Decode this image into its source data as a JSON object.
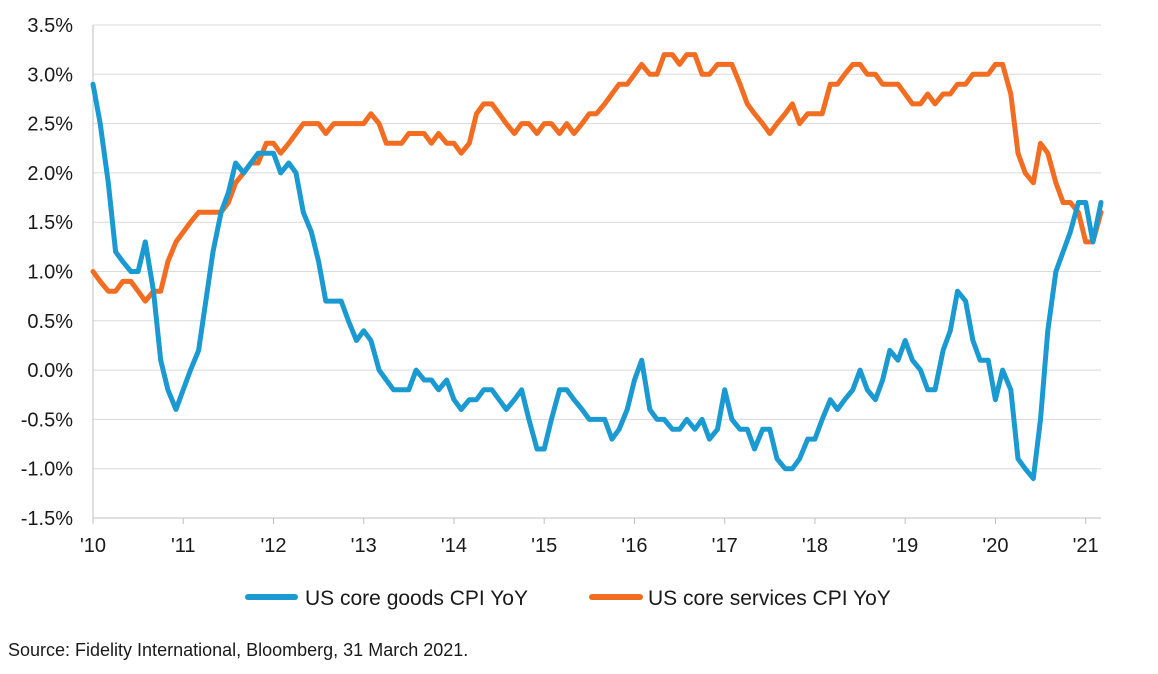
{
  "source": "Source: Fidelity International, Bloomberg, 31 March 2021.",
  "chart_data": {
    "type": "line",
    "ylim": [
      -1.5,
      3.5
    ],
    "yticks": [
      -1.5,
      -1.0,
      -0.5,
      0.0,
      0.5,
      1.0,
      1.5,
      2.0,
      2.5,
      3.0,
      3.5
    ],
    "ytick_labels": [
      "-1.5%",
      "-1.0%",
      "-0.5%",
      "0.0%",
      "0.5%",
      "1.0%",
      "1.5%",
      "2.0%",
      "2.5%",
      "3.0%",
      "3.5%"
    ],
    "xlim": [
      2010.0,
      2021.17
    ],
    "xticks": [
      2010,
      2011,
      2012,
      2013,
      2014,
      2015,
      2016,
      2017,
      2018,
      2019,
      2020,
      2021
    ],
    "xtick_labels": [
      "'10",
      "'11",
      "'12",
      "'13",
      "'14",
      "'15",
      "'16",
      "'17",
      "'18",
      "'19",
      "'20",
      "'21"
    ],
    "grid": "horizontal",
    "legend_position": "bottom",
    "series": [
      {
        "name": "US core goods CPI YoY",
        "color": "#1a9ad0",
        "points": [
          [
            2010.0,
            2.9
          ],
          [
            2010.08,
            2.5
          ],
          [
            2010.17,
            1.9
          ],
          [
            2010.25,
            1.2
          ],
          [
            2010.33,
            1.1
          ],
          [
            2010.42,
            1.0
          ],
          [
            2010.5,
            1.0
          ],
          [
            2010.58,
            1.3
          ],
          [
            2010.67,
            0.8
          ],
          [
            2010.75,
            0.1
          ],
          [
            2010.83,
            -0.2
          ],
          [
            2010.92,
            -0.4
          ],
          [
            2011.0,
            -0.2
          ],
          [
            2011.08,
            0.0
          ],
          [
            2011.17,
            0.2
          ],
          [
            2011.25,
            0.7
          ],
          [
            2011.33,
            1.2
          ],
          [
            2011.42,
            1.6
          ],
          [
            2011.5,
            1.8
          ],
          [
            2011.58,
            2.1
          ],
          [
            2011.67,
            2.0
          ],
          [
            2011.75,
            2.1
          ],
          [
            2011.83,
            2.2
          ],
          [
            2011.92,
            2.2
          ],
          [
            2012.0,
            2.2
          ],
          [
            2012.08,
            2.0
          ],
          [
            2012.17,
            2.1
          ],
          [
            2012.25,
            2.0
          ],
          [
            2012.33,
            1.6
          ],
          [
            2012.42,
            1.4
          ],
          [
            2012.5,
            1.1
          ],
          [
            2012.58,
            0.7
          ],
          [
            2012.67,
            0.7
          ],
          [
            2012.75,
            0.7
          ],
          [
            2012.83,
            0.5
          ],
          [
            2012.92,
            0.3
          ],
          [
            2013.0,
            0.4
          ],
          [
            2013.08,
            0.3
          ],
          [
            2013.17,
            0.0
          ],
          [
            2013.25,
            -0.1
          ],
          [
            2013.33,
            -0.2
          ],
          [
            2013.42,
            -0.2
          ],
          [
            2013.5,
            -0.2
          ],
          [
            2013.58,
            0.0
          ],
          [
            2013.67,
            -0.1
          ],
          [
            2013.75,
            -0.1
          ],
          [
            2013.83,
            -0.2
          ],
          [
            2013.92,
            -0.1
          ],
          [
            2014.0,
            -0.3
          ],
          [
            2014.08,
            -0.4
          ],
          [
            2014.17,
            -0.3
          ],
          [
            2014.25,
            -0.3
          ],
          [
            2014.33,
            -0.2
          ],
          [
            2014.42,
            -0.2
          ],
          [
            2014.5,
            -0.3
          ],
          [
            2014.58,
            -0.4
          ],
          [
            2014.67,
            -0.3
          ],
          [
            2014.75,
            -0.2
          ],
          [
            2014.83,
            -0.5
          ],
          [
            2014.92,
            -0.8
          ],
          [
            2015.0,
            -0.8
          ],
          [
            2015.08,
            -0.5
          ],
          [
            2015.17,
            -0.2
          ],
          [
            2015.25,
            -0.2
          ],
          [
            2015.33,
            -0.3
          ],
          [
            2015.42,
            -0.4
          ],
          [
            2015.5,
            -0.5
          ],
          [
            2015.58,
            -0.5
          ],
          [
            2015.67,
            -0.5
          ],
          [
            2015.75,
            -0.7
          ],
          [
            2015.83,
            -0.6
          ],
          [
            2015.92,
            -0.4
          ],
          [
            2016.0,
            -0.1
          ],
          [
            2016.08,
            0.1
          ],
          [
            2016.17,
            -0.4
          ],
          [
            2016.25,
            -0.5
          ],
          [
            2016.33,
            -0.5
          ],
          [
            2016.42,
            -0.6
          ],
          [
            2016.5,
            -0.6
          ],
          [
            2016.58,
            -0.5
          ],
          [
            2016.67,
            -0.6
          ],
          [
            2016.75,
            -0.5
          ],
          [
            2016.83,
            -0.7
          ],
          [
            2016.92,
            -0.6
          ],
          [
            2017.0,
            -0.2
          ],
          [
            2017.08,
            -0.5
          ],
          [
            2017.17,
            -0.6
          ],
          [
            2017.25,
            -0.6
          ],
          [
            2017.33,
            -0.8
          ],
          [
            2017.42,
            -0.6
          ],
          [
            2017.5,
            -0.6
          ],
          [
            2017.58,
            -0.9
          ],
          [
            2017.67,
            -1.0
          ],
          [
            2017.75,
            -1.0
          ],
          [
            2017.83,
            -0.9
          ],
          [
            2017.92,
            -0.7
          ],
          [
            2018.0,
            -0.7
          ],
          [
            2018.08,
            -0.5
          ],
          [
            2018.17,
            -0.3
          ],
          [
            2018.25,
            -0.4
          ],
          [
            2018.33,
            -0.3
          ],
          [
            2018.42,
            -0.2
          ],
          [
            2018.5,
            0.0
          ],
          [
            2018.58,
            -0.2
          ],
          [
            2018.67,
            -0.3
          ],
          [
            2018.75,
            -0.1
          ],
          [
            2018.83,
            0.2
          ],
          [
            2018.92,
            0.1
          ],
          [
            2019.0,
            0.3
          ],
          [
            2019.08,
            0.1
          ],
          [
            2019.17,
            0.0
          ],
          [
            2019.25,
            -0.2
          ],
          [
            2019.33,
            -0.2
          ],
          [
            2019.42,
            0.2
          ],
          [
            2019.5,
            0.4
          ],
          [
            2019.58,
            0.8
          ],
          [
            2019.67,
            0.7
          ],
          [
            2019.75,
            0.3
          ],
          [
            2019.83,
            0.1
          ],
          [
            2019.92,
            0.1
          ],
          [
            2020.0,
            -0.3
          ],
          [
            2020.08,
            0.0
          ],
          [
            2020.17,
            -0.2
          ],
          [
            2020.25,
            -0.9
          ],
          [
            2020.33,
            -1.0
          ],
          [
            2020.42,
            -1.1
          ],
          [
            2020.5,
            -0.5
          ],
          [
            2020.58,
            0.4
          ],
          [
            2020.67,
            1.0
          ],
          [
            2020.75,
            1.2
          ],
          [
            2020.83,
            1.4
          ],
          [
            2020.92,
            1.7
          ],
          [
            2021.0,
            1.7
          ],
          [
            2021.08,
            1.3
          ],
          [
            2021.17,
            1.7
          ]
        ]
      },
      {
        "name": "US core services CPI YoY",
        "color": "#f26d21",
        "points": [
          [
            2010.0,
            1.0
          ],
          [
            2010.08,
            0.9
          ],
          [
            2010.17,
            0.8
          ],
          [
            2010.25,
            0.8
          ],
          [
            2010.33,
            0.9
          ],
          [
            2010.42,
            0.9
          ],
          [
            2010.5,
            0.8
          ],
          [
            2010.58,
            0.7
          ],
          [
            2010.67,
            0.8
          ],
          [
            2010.75,
            0.8
          ],
          [
            2010.83,
            1.1
          ],
          [
            2010.92,
            1.3
          ],
          [
            2011.0,
            1.4
          ],
          [
            2011.08,
            1.5
          ],
          [
            2011.17,
            1.6
          ],
          [
            2011.25,
            1.6
          ],
          [
            2011.33,
            1.6
          ],
          [
            2011.42,
            1.6
          ],
          [
            2011.5,
            1.7
          ],
          [
            2011.58,
            1.9
          ],
          [
            2011.67,
            2.0
          ],
          [
            2011.75,
            2.1
          ],
          [
            2011.83,
            2.1
          ],
          [
            2011.92,
            2.3
          ],
          [
            2012.0,
            2.3
          ],
          [
            2012.08,
            2.2
          ],
          [
            2012.17,
            2.3
          ],
          [
            2012.25,
            2.4
          ],
          [
            2012.33,
            2.5
          ],
          [
            2012.42,
            2.5
          ],
          [
            2012.5,
            2.5
          ],
          [
            2012.58,
            2.4
          ],
          [
            2012.67,
            2.5
          ],
          [
            2012.75,
            2.5
          ],
          [
            2012.83,
            2.5
          ],
          [
            2012.92,
            2.5
          ],
          [
            2013.0,
            2.5
          ],
          [
            2013.08,
            2.6
          ],
          [
            2013.17,
            2.5
          ],
          [
            2013.25,
            2.3
          ],
          [
            2013.33,
            2.3
          ],
          [
            2013.42,
            2.3
          ],
          [
            2013.5,
            2.4
          ],
          [
            2013.58,
            2.4
          ],
          [
            2013.67,
            2.4
          ],
          [
            2013.75,
            2.3
          ],
          [
            2013.83,
            2.4
          ],
          [
            2013.92,
            2.3
          ],
          [
            2014.0,
            2.3
          ],
          [
            2014.08,
            2.2
          ],
          [
            2014.17,
            2.3
          ],
          [
            2014.25,
            2.6
          ],
          [
            2014.33,
            2.7
          ],
          [
            2014.42,
            2.7
          ],
          [
            2014.5,
            2.6
          ],
          [
            2014.58,
            2.5
          ],
          [
            2014.67,
            2.4
          ],
          [
            2014.75,
            2.5
          ],
          [
            2014.83,
            2.5
          ],
          [
            2014.92,
            2.4
          ],
          [
            2015.0,
            2.5
          ],
          [
            2015.08,
            2.5
          ],
          [
            2015.17,
            2.4
          ],
          [
            2015.25,
            2.5
          ],
          [
            2015.33,
            2.4
          ],
          [
            2015.42,
            2.5
          ],
          [
            2015.5,
            2.6
          ],
          [
            2015.58,
            2.6
          ],
          [
            2015.67,
            2.7
          ],
          [
            2015.75,
            2.8
          ],
          [
            2015.83,
            2.9
          ],
          [
            2015.92,
            2.9
          ],
          [
            2016.0,
            3.0
          ],
          [
            2016.08,
            3.1
          ],
          [
            2016.17,
            3.0
          ],
          [
            2016.25,
            3.0
          ],
          [
            2016.33,
            3.2
          ],
          [
            2016.42,
            3.2
          ],
          [
            2016.5,
            3.1
          ],
          [
            2016.58,
            3.2
          ],
          [
            2016.67,
            3.2
          ],
          [
            2016.75,
            3.0
          ],
          [
            2016.83,
            3.0
          ],
          [
            2016.92,
            3.1
          ],
          [
            2017.0,
            3.1
          ],
          [
            2017.08,
            3.1
          ],
          [
            2017.17,
            2.9
          ],
          [
            2017.25,
            2.7
          ],
          [
            2017.33,
            2.6
          ],
          [
            2017.42,
            2.5
          ],
          [
            2017.5,
            2.4
          ],
          [
            2017.58,
            2.5
          ],
          [
            2017.67,
            2.6
          ],
          [
            2017.75,
            2.7
          ],
          [
            2017.83,
            2.5
          ],
          [
            2017.92,
            2.6
          ],
          [
            2018.0,
            2.6
          ],
          [
            2018.08,
            2.6
          ],
          [
            2018.17,
            2.9
          ],
          [
            2018.25,
            2.9
          ],
          [
            2018.33,
            3.0
          ],
          [
            2018.42,
            3.1
          ],
          [
            2018.5,
            3.1
          ],
          [
            2018.58,
            3.0
          ],
          [
            2018.67,
            3.0
          ],
          [
            2018.75,
            2.9
          ],
          [
            2018.83,
            2.9
          ],
          [
            2018.92,
            2.9
          ],
          [
            2019.0,
            2.8
          ],
          [
            2019.08,
            2.7
          ],
          [
            2019.17,
            2.7
          ],
          [
            2019.25,
            2.8
          ],
          [
            2019.33,
            2.7
          ],
          [
            2019.42,
            2.8
          ],
          [
            2019.5,
            2.8
          ],
          [
            2019.58,
            2.9
          ],
          [
            2019.67,
            2.9
          ],
          [
            2019.75,
            3.0
          ],
          [
            2019.83,
            3.0
          ],
          [
            2019.92,
            3.0
          ],
          [
            2020.0,
            3.1
          ],
          [
            2020.08,
            3.1
          ],
          [
            2020.17,
            2.8
          ],
          [
            2020.25,
            2.2
          ],
          [
            2020.33,
            2.0
          ],
          [
            2020.42,
            1.9
          ],
          [
            2020.5,
            2.3
          ],
          [
            2020.58,
            2.2
          ],
          [
            2020.67,
            1.9
          ],
          [
            2020.75,
            1.7
          ],
          [
            2020.83,
            1.7
          ],
          [
            2020.92,
            1.6
          ],
          [
            2021.0,
            1.3
          ],
          [
            2021.08,
            1.3
          ],
          [
            2021.17,
            1.6
          ]
        ]
      }
    ]
  }
}
